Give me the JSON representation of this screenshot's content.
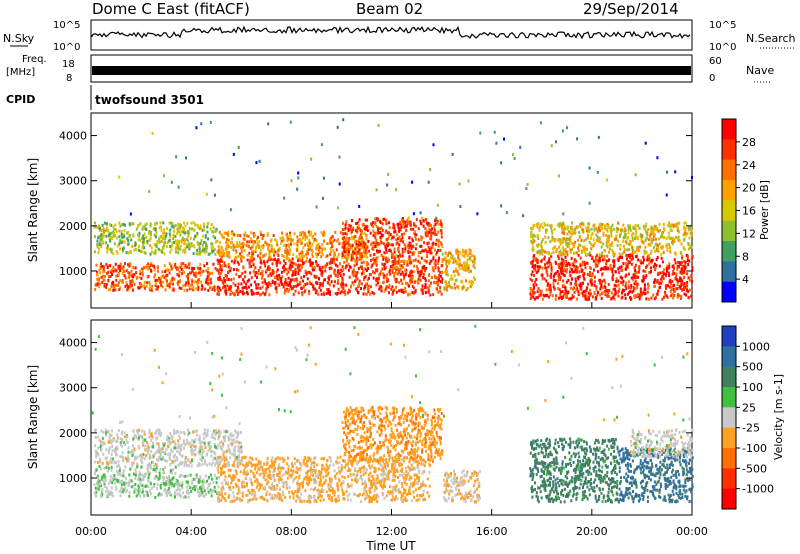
{
  "header": {
    "station": "Dome C East (fitACF)",
    "beam": "Beam 02",
    "date": "29/Sep/2014"
  },
  "top_panels": {
    "nsky_label": "N.Sky",
    "nsearch_label": "N.Search",
    "freq_label": "Freq.",
    "freq_unit": "[MHz]",
    "nave_label": "Nave",
    "cpid_label": "CPID",
    "cpid_value": "twofsound 3501",
    "noise_ticks": [
      "10^5",
      "10^0"
    ],
    "freq_ticks": [
      "18",
      "8"
    ],
    "nave_ticks": [
      "60",
      "0"
    ]
  },
  "chart_data": [
    {
      "type": "heatmap",
      "name": "power",
      "ylabel": "Slant Range [km]",
      "yticks": [
        1000,
        2000,
        3000,
        4000
      ],
      "ylim": [
        180,
        4500
      ],
      "xlim": [
        0,
        24
      ],
      "colorbar_label": "Power [dB]",
      "colorbar_ticks": [
        "28",
        "24",
        "20",
        "16",
        "12",
        "8",
        "4"
      ],
      "colorbar_colors": [
        "#ff0000",
        "#ff3000",
        "#ff7000",
        "#ffa000",
        "#d8c800",
        "#90c030",
        "#40a060",
        "#3070a0",
        "#0000ff"
      ],
      "regions": [
        {
          "t": [
            0.1,
            5.0
          ],
          "r": [
            1400,
            2100
          ],
          "level": 12
        },
        {
          "t": [
            0.1,
            5.0
          ],
          "r": [
            600,
            1200
          ],
          "level": 24
        },
        {
          "t": [
            5.0,
            10.0
          ],
          "r": [
            500,
            1300
          ],
          "level": 28
        },
        {
          "t": [
            5.0,
            11.0
          ],
          "r": [
            1300,
            1900
          ],
          "level": 20
        },
        {
          "t": [
            10.0,
            14.0
          ],
          "r": [
            500,
            2200
          ],
          "level": 26
        },
        {
          "t": [
            14.0,
            15.3
          ],
          "r": [
            600,
            1500
          ],
          "level": 18
        },
        {
          "t": [
            17.5,
            24.0
          ],
          "r": [
            400,
            1400
          ],
          "level": 28
        },
        {
          "t": [
            17.5,
            24.0
          ],
          "r": [
            1400,
            2100
          ],
          "level": 16
        }
      ]
    },
    {
      "type": "heatmap",
      "name": "velocity",
      "ylabel": "Slant Range [km]",
      "xlabel": "Time UT",
      "yticks": [
        1000,
        2000,
        3000,
        4000
      ],
      "ylim": [
        180,
        4500
      ],
      "xlim": [
        0,
        24
      ],
      "xticks": [
        "00:00",
        "04:00",
        "08:00",
        "12:00",
        "16:00",
        "20:00",
        "00:00"
      ],
      "colorbar_label": "Velocity [m s-1]",
      "colorbar_ticks": [
        "1000",
        "500",
        "100",
        "25",
        "-25",
        "-100",
        "-500",
        "-1000"
      ],
      "colorbar_colors": [
        "#2040c0",
        "#3070a0",
        "#408060",
        "#40c040",
        "#c8c8c8",
        "#ffa020",
        "#ff7000",
        "#ff3000",
        "#ff0000"
      ],
      "regions": [
        {
          "t": [
            0.1,
            6.0
          ],
          "r": [
            1300,
            2100
          ],
          "level": 0
        },
        {
          "t": [
            0.1,
            3.5
          ],
          "r": [
            600,
            1300
          ],
          "level": 100
        },
        {
          "t": [
            3.5,
            5.0
          ],
          "r": [
            600,
            1100
          ],
          "level": 50
        },
        {
          "t": [
            5.0,
            13.5
          ],
          "r": [
            500,
            1500
          ],
          "level": -200
        },
        {
          "t": [
            10.0,
            14.0
          ],
          "r": [
            1400,
            2600
          ],
          "level": -300
        },
        {
          "t": [
            14.0,
            15.5
          ],
          "r": [
            500,
            1200
          ],
          "level": -100
        },
        {
          "t": [
            17.5,
            21.0
          ],
          "r": [
            500,
            1900
          ],
          "level": 500
        },
        {
          "t": [
            21.0,
            24.0
          ],
          "r": [
            500,
            1700
          ],
          "level": 700
        },
        {
          "t": [
            21.5,
            24.0
          ],
          "r": [
            1500,
            2100
          ],
          "level": 0
        }
      ]
    }
  ]
}
